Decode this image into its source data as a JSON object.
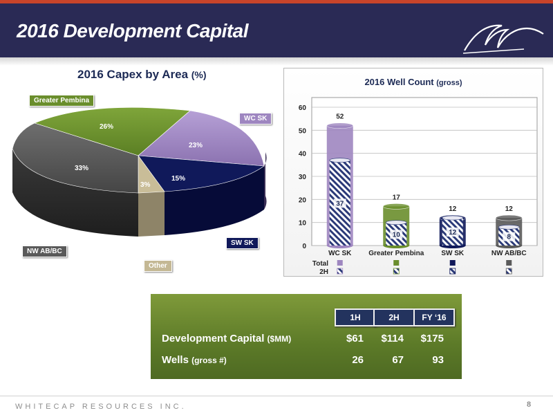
{
  "header": {
    "title": "2016 Development Capital"
  },
  "colors": {
    "header_bg": "#2a2a55",
    "accent": "#c8442a",
    "capital_panel": "#6b8a2f"
  },
  "pie": {
    "title": "2016 Capex by Area",
    "title_unit": "(%)",
    "slices": [
      {
        "label": "Greater Pembina",
        "pct_label": "26%",
        "value": 26,
        "color": "#6a8e2c"
      },
      {
        "label": "WC SK",
        "pct_label": "23%",
        "value": 23,
        "color": "#9e86c0"
      },
      {
        "label": "SW SK",
        "pct_label": "15%",
        "value": 15,
        "color": "#10195a"
      },
      {
        "label": "Other",
        "pct_label": "3%",
        "value": 3,
        "color": "#c4b894"
      },
      {
        "label": "NW AB/BC",
        "pct_label": "33%",
        "value": 33,
        "color": "#5a5a5a"
      }
    ]
  },
  "chart_data": {
    "type": "bar",
    "title": "2016 Well Count",
    "title_unit": "(gross)",
    "categories": [
      "WC SK",
      "Greater Pembina",
      "SW SK",
      "NW AB/BC"
    ],
    "series": [
      {
        "name": "Total",
        "values": [
          52,
          17,
          12,
          12
        ]
      },
      {
        "name": "2H",
        "values": [
          37,
          10,
          12,
          8
        ]
      }
    ],
    "ylim": [
      0,
      60
    ],
    "yticks": [
      "0",
      "10",
      "20",
      "30",
      "40",
      "50",
      "60"
    ],
    "colors": [
      "#9e86c0",
      "#6a8e2c",
      "#10195a",
      "#5a5a5a"
    ]
  },
  "capital": {
    "headers": [
      "1H",
      "2H",
      "FY ‘16"
    ],
    "rows": [
      {
        "label": "Development Capital",
        "unit": "($MM)",
        "values": [
          "$61",
          "$114",
          "$175"
        ]
      },
      {
        "label": "Wells",
        "unit": "(gross #)",
        "values": [
          "26",
          "67",
          "93"
        ]
      }
    ]
  },
  "footer": {
    "brand": "WHITECAP RESOURCES INC.",
    "page": "8"
  }
}
